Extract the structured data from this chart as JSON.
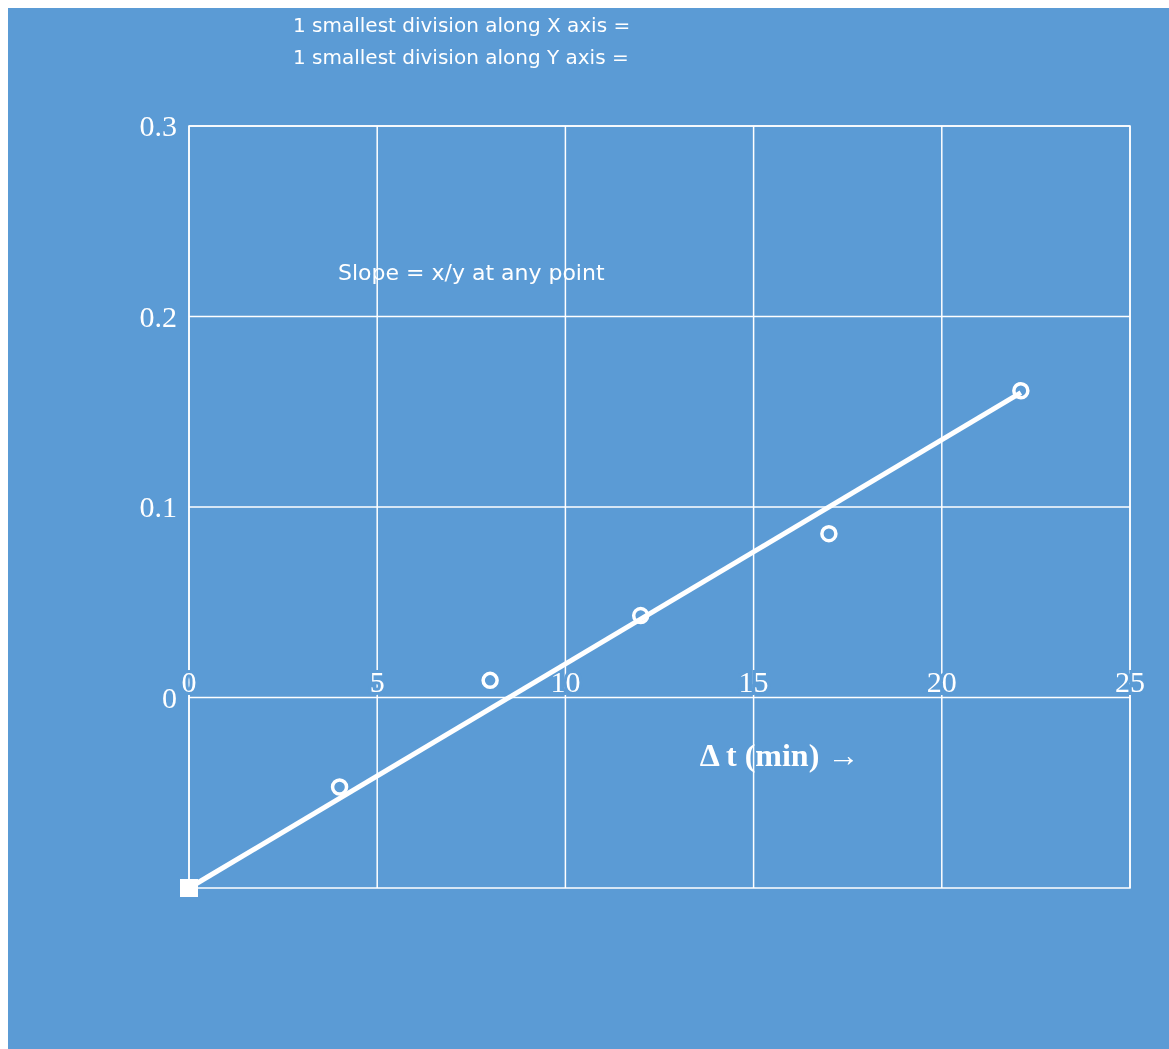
{
  "chart_data": {
    "type": "scatter",
    "xlabel": "Δ t (min) →",
    "annotations": [
      "1 smallest division along X axis =",
      "1 smallest division along Y axis =",
      "Slope = x/y at any point"
    ],
    "xlim": [
      0,
      25
    ],
    "xticks": [
      0,
      5,
      10,
      15,
      20,
      25
    ],
    "ylim": [
      -0.1,
      0.3
    ],
    "yticks": [
      0,
      0.1,
      0.2,
      0.3
    ],
    "grid": true,
    "series": [
      {
        "type": "line",
        "color": "#ffffff",
        "x": [
          0,
          22.1
        ],
        "values": [
          -0.1,
          0.16
        ],
        "marker": "none"
      },
      {
        "type": "scatter",
        "color": "#ffffff",
        "x": [
          0
        ],
        "values": [
          -0.1
        ],
        "marker": "square"
      },
      {
        "type": "scatter",
        "color": "#ffffff",
        "x": [
          4,
          8,
          12,
          17,
          22.1
        ],
        "values": [
          -0.047,
          0.009,
          0.043,
          0.086,
          0.161
        ],
        "marker": "circle"
      }
    ]
  }
}
